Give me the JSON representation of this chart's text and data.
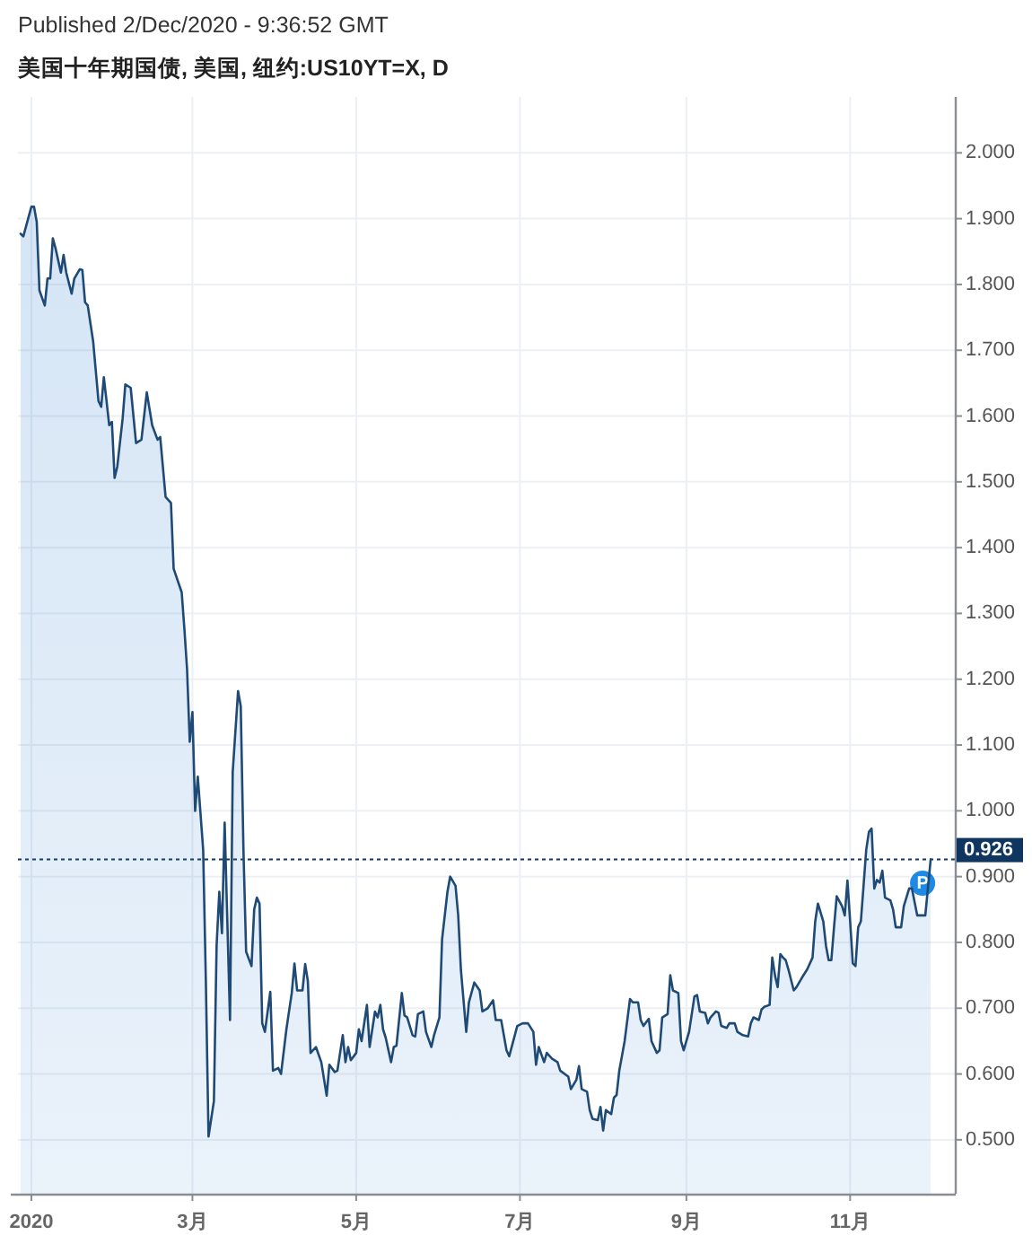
{
  "chart_data": {
    "type": "area",
    "subtitle": "Published 2/Dec/2020 - 9:36:52 GMT",
    "title": "美国十年期国债, 美国, 纽约:US10YT=X, D",
    "x": [
      "2019-12-28",
      "2019-12-29",
      "2020-01-01",
      "2020-01-02",
      "2020-01-03",
      "2020-01-04",
      "2020-01-06",
      "2020-01-07",
      "2020-01-08",
      "2020-01-09",
      "2020-01-10",
      "2020-01-12",
      "2020-01-13",
      "2020-01-14",
      "2020-01-16",
      "2020-01-17",
      "2020-01-19",
      "2020-01-20",
      "2020-01-21",
      "2020-01-22",
      "2020-01-24",
      "2020-01-26",
      "2020-01-27",
      "2020-01-28",
      "2020-01-29",
      "2020-01-30",
      "2020-01-31",
      "2020-02-01",
      "2020-02-02",
      "2020-02-04",
      "2020-02-05",
      "2020-02-07",
      "2020-02-09",
      "2020-02-11",
      "2020-02-13",
      "2020-02-15",
      "2020-02-17",
      "2020-02-18",
      "2020-02-20",
      "2020-02-22",
      "2020-02-23",
      "2020-02-26",
      "2020-02-27",
      "2020-02-28",
      "2020-02-29",
      "2020-03-01",
      "2020-03-02",
      "2020-03-03",
      "2020-03-05",
      "2020-03-06",
      "2020-03-07",
      "2020-03-09",
      "2020-03-10",
      "2020-03-11",
      "2020-03-12",
      "2020-03-13",
      "2020-03-15",
      "2020-03-16",
      "2020-03-18",
      "2020-03-19",
      "2020-03-20",
      "2020-03-21",
      "2020-03-23",
      "2020-03-24",
      "2020-03-25",
      "2020-03-26",
      "2020-03-27",
      "2020-03-28",
      "2020-03-30",
      "2020-03-31",
      "2020-04-02",
      "2020-04-03",
      "2020-04-05",
      "2020-04-07",
      "2020-04-08",
      "2020-04-09",
      "2020-04-11",
      "2020-04-12",
      "2020-04-13",
      "2020-04-14",
      "2020-04-16",
      "2020-04-18",
      "2020-04-20",
      "2020-04-21",
      "2020-04-23",
      "2020-04-24",
      "2020-04-26",
      "2020-04-27",
      "2020-04-28",
      "2020-04-29",
      "2020-05-01",
      "2020-05-02",
      "2020-05-03",
      "2020-05-05",
      "2020-05-06",
      "2020-05-08",
      "2020-05-09",
      "2020-05-10",
      "2020-05-11",
      "2020-05-12",
      "2020-05-14",
      "2020-05-15",
      "2020-05-16",
      "2020-05-18",
      "2020-05-19",
      "2020-05-20",
      "2020-05-22",
      "2020-05-23",
      "2020-05-24",
      "2020-05-26",
      "2020-05-27",
      "2020-05-29",
      "2020-05-30",
      "2020-06-01",
      "2020-06-02",
      "2020-06-04",
      "2020-06-05",
      "2020-06-07",
      "2020-06-08",
      "2020-06-09",
      "2020-06-11",
      "2020-06-12",
      "2020-06-14",
      "2020-06-16",
      "2020-06-17",
      "2020-06-19",
      "2020-06-21",
      "2020-06-22",
      "2020-06-24",
      "2020-06-26",
      "2020-06-27",
      "2020-06-30",
      "2020-07-02",
      "2020-07-04",
      "2020-07-06",
      "2020-07-07",
      "2020-07-08",
      "2020-07-10",
      "2020-07-11",
      "2020-07-13",
      "2020-07-15",
      "2020-07-16",
      "2020-07-19",
      "2020-07-20",
      "2020-07-22",
      "2020-07-23",
      "2020-07-24",
      "2020-07-26",
      "2020-07-27",
      "2020-07-28",
      "2020-07-30",
      "2020-07-31",
      "2020-08-01",
      "2020-08-02",
      "2020-08-04",
      "2020-08-05",
      "2020-08-06",
      "2020-08-07",
      "2020-08-09",
      "2020-08-11",
      "2020-08-12",
      "2020-08-14",
      "2020-08-15",
      "2020-08-16",
      "2020-08-18",
      "2020-08-19",
      "2020-08-21",
      "2020-08-22",
      "2020-08-23",
      "2020-08-25",
      "2020-08-26",
      "2020-08-27",
      "2020-08-29",
      "2020-08-30",
      "2020-08-31",
      "2020-09-02",
      "2020-09-04",
      "2020-09-05",
      "2020-09-06",
      "2020-09-08",
      "2020-09-09",
      "2020-09-10",
      "2020-09-12",
      "2020-09-13",
      "2020-09-14",
      "2020-09-16",
      "2020-09-17",
      "2020-09-19",
      "2020-09-20",
      "2020-09-22",
      "2020-09-24",
      "2020-09-25",
      "2020-09-26",
      "2020-09-28",
      "2020-09-29",
      "2020-09-30",
      "2020-10-02",
      "2020-10-03",
      "2020-10-04",
      "2020-10-05",
      "2020-10-06",
      "2020-10-07",
      "2020-10-08",
      "2020-10-09",
      "2020-10-11",
      "2020-10-12",
      "2020-10-14",
      "2020-10-16",
      "2020-10-18",
      "2020-10-19",
      "2020-10-20",
      "2020-10-22",
      "2020-10-23",
      "2020-10-24",
      "2020-10-25",
      "2020-10-26",
      "2020-10-27",
      "2020-10-29",
      "2020-10-30",
      "2020-10-31",
      "2020-11-01",
      "2020-11-02",
      "2020-11-03",
      "2020-11-04",
      "2020-11-05",
      "2020-11-06",
      "2020-11-07",
      "2020-11-08",
      "2020-11-09",
      "2020-11-10",
      "2020-11-11",
      "2020-11-12",
      "2020-11-13",
      "2020-11-14",
      "2020-11-16",
      "2020-11-17",
      "2020-11-18",
      "2020-11-20",
      "2020-11-21",
      "2020-11-23",
      "2020-11-24",
      "2020-11-26",
      "2020-11-27",
      "2020-11-29",
      "2020-12-01"
    ],
    "series": [
      {
        "color": "#1f4a75",
        "values": [
          1.877,
          1.873,
          1.918,
          1.918,
          1.895,
          1.791,
          1.768,
          1.809,
          1.809,
          1.87,
          1.855,
          1.818,
          1.845,
          1.818,
          1.786,
          1.809,
          1.823,
          1.822,
          1.773,
          1.768,
          1.714,
          1.623,
          1.614,
          1.659,
          1.623,
          1.586,
          1.591,
          1.506,
          1.523,
          1.596,
          1.648,
          1.643,
          1.559,
          1.564,
          1.636,
          1.586,
          1.564,
          1.568,
          1.477,
          1.468,
          1.368,
          1.332,
          1.277,
          1.215,
          1.105,
          1.15,
          1.0,
          1.052,
          0.941,
          0.741,
          0.505,
          0.559,
          0.795,
          0.877,
          0.814,
          0.982,
          0.682,
          1.059,
          1.182,
          1.159,
          0.941,
          0.786,
          0.764,
          0.85,
          0.868,
          0.859,
          0.677,
          0.664,
          0.725,
          0.605,
          0.609,
          0.6,
          0.668,
          0.723,
          0.768,
          0.727,
          0.727,
          0.767,
          0.741,
          0.632,
          0.641,
          0.618,
          0.567,
          0.614,
          0.603,
          0.605,
          0.659,
          0.618,
          0.641,
          0.621,
          0.632,
          0.668,
          0.65,
          0.705,
          0.641,
          0.695,
          0.686,
          0.705,
          0.668,
          0.655,
          0.618,
          0.641,
          0.643,
          0.723,
          0.689,
          0.686,
          0.659,
          0.657,
          0.691,
          0.695,
          0.664,
          0.641,
          0.659,
          0.686,
          0.805,
          0.877,
          0.9,
          0.886,
          0.841,
          0.759,
          0.664,
          0.709,
          0.739,
          0.727,
          0.695,
          0.7,
          0.712,
          0.682,
          0.682,
          0.636,
          0.627,
          0.673,
          0.677,
          0.677,
          0.664,
          0.614,
          0.641,
          0.618,
          0.632,
          0.623,
          0.618,
          0.605,
          0.596,
          0.577,
          0.591,
          0.612,
          0.577,
          0.573,
          0.545,
          0.532,
          0.53,
          0.55,
          0.514,
          0.545,
          0.539,
          0.564,
          0.568,
          0.605,
          0.65,
          0.714,
          0.709,
          0.709,
          0.682,
          0.673,
          0.684,
          0.65,
          0.632,
          0.636,
          0.686,
          0.691,
          0.75,
          0.727,
          0.723,
          0.65,
          0.636,
          0.664,
          0.718,
          0.72,
          0.695,
          0.693,
          0.677,
          0.686,
          0.695,
          0.693,
          0.673,
          0.67,
          0.677,
          0.677,
          0.664,
          0.659,
          0.657,
          0.677,
          0.686,
          0.682,
          0.698,
          0.702,
          0.705,
          0.777,
          0.75,
          0.732,
          0.782,
          0.777,
          0.773,
          0.759,
          0.727,
          0.732,
          0.746,
          0.759,
          0.777,
          0.832,
          0.859,
          0.832,
          0.795,
          0.773,
          0.773,
          0.823,
          0.87,
          0.855,
          0.841,
          0.894,
          0.832,
          0.768,
          0.764,
          0.823,
          0.832,
          0.886,
          0.941,
          0.968,
          0.973,
          0.882,
          0.895,
          0.891,
          0.909,
          0.868,
          0.864,
          0.85,
          0.823,
          0.823,
          0.855,
          0.882,
          0.882,
          0.841,
          0.841,
          0.841,
          0.926
        ]
      }
    ],
    "xlim": [
      "2019-12-27",
      "2020-12-10"
    ],
    "ylim": [
      0.418,
      2.085
    ],
    "xticks": [
      {
        "value": "2020-01-01",
        "label": "2020"
      },
      {
        "value": "2020-03-01",
        "label": "3月"
      },
      {
        "value": "2020-05-01",
        "label": "5月"
      },
      {
        "value": "2020-07-01",
        "label": "7月"
      },
      {
        "value": "2020-09-01",
        "label": "9月"
      },
      {
        "value": "2020-11-01",
        "label": "11月"
      }
    ],
    "yticks": [
      {
        "value": 0.5,
        "label": "0.500"
      },
      {
        "value": 0.6,
        "label": "0.600"
      },
      {
        "value": 0.7,
        "label": "0.700"
      },
      {
        "value": 0.8,
        "label": "0.800"
      },
      {
        "value": 0.9,
        "label": "0.900"
      },
      {
        "value": 1.0,
        "label": "1.000"
      },
      {
        "value": 1.1,
        "label": "1.100"
      },
      {
        "value": 1.2,
        "label": "1.200"
      },
      {
        "value": 1.3,
        "label": "1.300"
      },
      {
        "value": 1.4,
        "label": "1.400"
      },
      {
        "value": 1.5,
        "label": "1.500"
      },
      {
        "value": 1.6,
        "label": "1.600"
      },
      {
        "value": 1.7,
        "label": "1.700"
      },
      {
        "value": 1.8,
        "label": "1.800"
      },
      {
        "value": 1.9,
        "label": "1.900"
      },
      {
        "value": 2.0,
        "label": "2.000"
      }
    ],
    "grid": true,
    "line_style": "solid",
    "ref_lines": [
      {
        "axis": "y",
        "value": 0.926,
        "label": "0.926",
        "color": "#0e3660",
        "line_style": "dotted"
      }
    ],
    "annotations": [
      {
        "text": "P",
        "x": "2020-11-28",
        "y": 0.89
      }
    ]
  }
}
